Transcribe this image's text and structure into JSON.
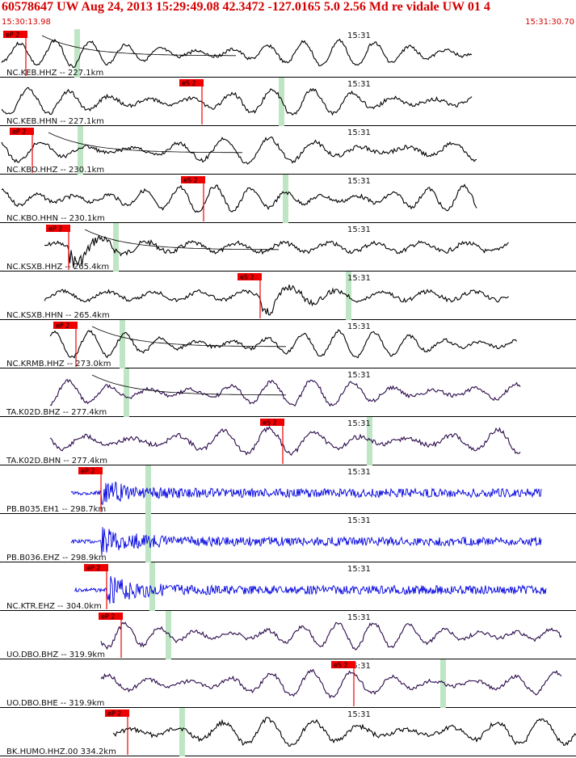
{
  "header": {
    "title": "60578647 UW Aug 24, 2013 15:29:49.08   42.3472 -127.0165  5.0 2.56 Md re vidale UW 01   4",
    "start_time": "15:30:13.98",
    "end_time": "15:31:30.70"
  },
  "minute_label": "15:31",
  "colors": {
    "header_red": "#d40000",
    "pick_red": "#ee0000",
    "trace_black": "#000000",
    "trace_purple": "#2a0a4a",
    "trace_blue": "#0000e0",
    "phase_window_green": "#bfe6c4"
  },
  "traces": [
    {
      "label": "NC.KEB.HHZ -- 227.1km",
      "pick": "eP 2",
      "color": "black",
      "kind": "smooth",
      "noise": 0.25
    },
    {
      "label": "NC.KEB.HHN -- 227.1km",
      "pick": "eS 2",
      "color": "black",
      "kind": "smooth",
      "noise": 0.3
    },
    {
      "label": "NC.KBO.HHZ -- 230.1km",
      "pick": "eP 2",
      "color": "black",
      "kind": "smooth",
      "noise": 0.3
    },
    {
      "label": "NC.KBO.HHN -- 230.1km",
      "pick": "eS 2",
      "color": "black",
      "kind": "smooth",
      "noise": 0.3
    },
    {
      "label": "NC.KSXB.HHZ -- 265.4km",
      "pick": "eP 2",
      "color": "black",
      "kind": "burst",
      "noise": 0.6
    },
    {
      "label": "NC.KSXB.HHN -- 265.4km",
      "pick": "eS 2",
      "color": "black",
      "kind": "burst",
      "noise": 0.55
    },
    {
      "label": "NC.KRMB.HHZ -- 273.0km",
      "pick": "eP 2",
      "color": "black",
      "kind": "smooth",
      "noise": 0.25
    },
    {
      "label": "TA.K02D.BHZ -- 277.4km",
      "pick": "",
      "color": "purple",
      "kind": "smooth",
      "noise": 0.3
    },
    {
      "label": "TA.K02D.BHN -- 277.4km",
      "pick": "eS 2",
      "color": "purple",
      "kind": "smooth",
      "noise": 0.35
    },
    {
      "label": "PB.B035.EH1 -- 298.7km",
      "pick": "eP 2",
      "color": "blue",
      "kind": "hf",
      "noise": 1.0
    },
    {
      "label": "PB.B036.EHZ -- 298.9km",
      "pick": "",
      "color": "blue",
      "kind": "hf",
      "noise": 1.0
    },
    {
      "label": "NC.KTR.EHZ -- 304.0km",
      "pick": "eP 2",
      "color": "blue",
      "kind": "hf",
      "noise": 0.9
    },
    {
      "label": "UO.DBO.BHZ -- 319.9km",
      "pick": "eP 2",
      "color": "purple",
      "kind": "smooth",
      "noise": 0.3
    },
    {
      "label": "UO.DBO.BHE -- 319.9km",
      "pick": "eS 2",
      "color": "purple",
      "kind": "smooth",
      "noise": 0.3
    },
    {
      "label": "BK.HUMO.HHZ.00 334.2km",
      "pick": "eP 2",
      "color": "black",
      "kind": "smooth",
      "noise": 0.35
    }
  ]
}
